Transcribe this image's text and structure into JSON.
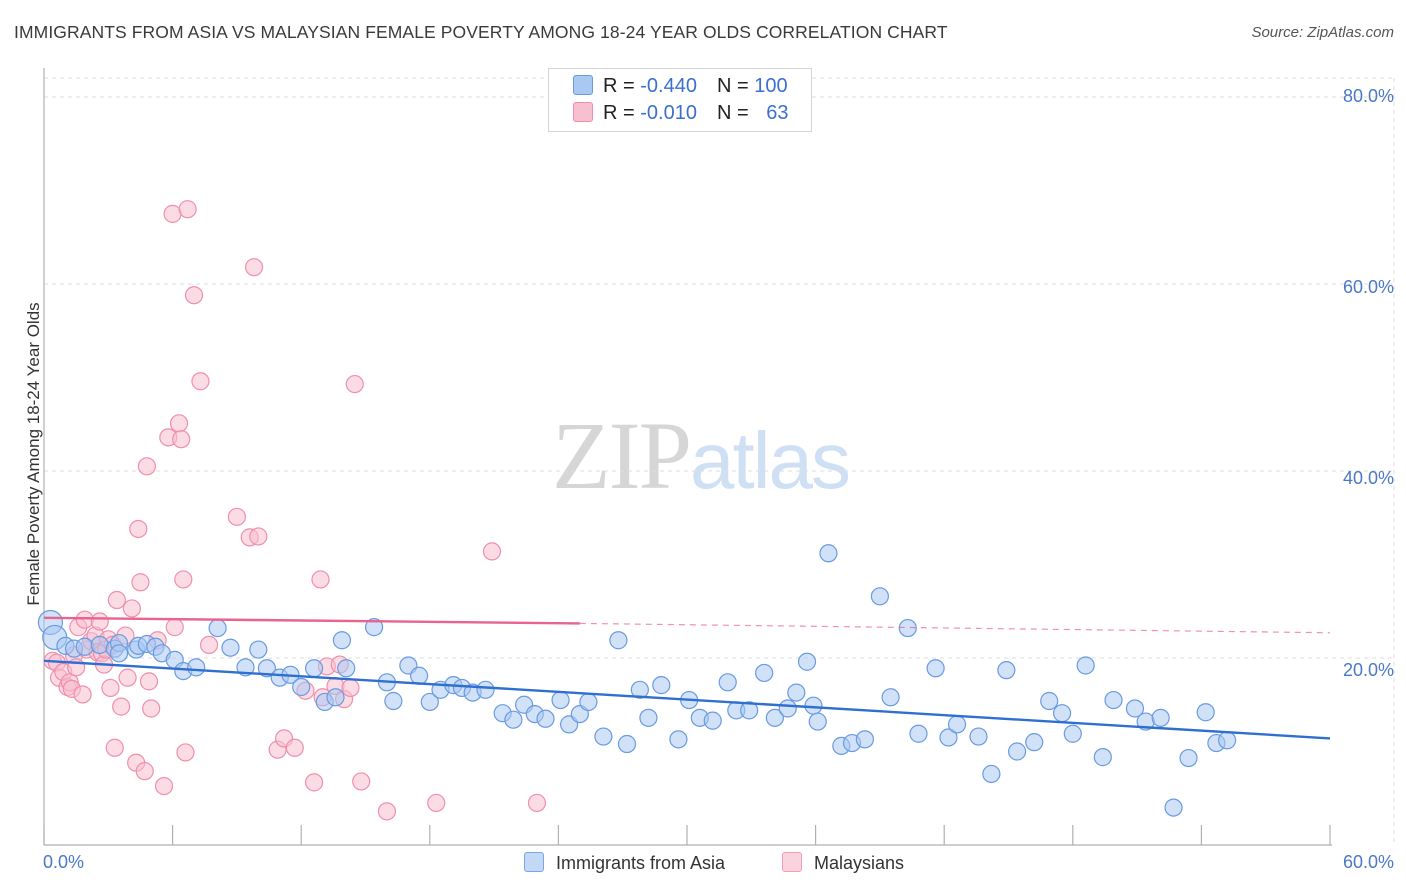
{
  "title": "IMMIGRANTS FROM ASIA VS MALAYSIAN FEMALE POVERTY AMONG 18-24 YEAR OLDS CORRELATION CHART",
  "source": "Source: ZipAtlas.com",
  "watermark": {
    "zip": "ZIP",
    "atlas": "atlas"
  },
  "legend": {
    "rows": [
      {
        "r_label": "R = ",
        "r_value": "-0.440",
        "n_label": "N = ",
        "n_value": "100"
      },
      {
        "r_label": "R = ",
        "r_value": "-0.010",
        "n_label": "N = ",
        "n_value": "63"
      }
    ]
  },
  "bottom_legend": [
    "Immigrants from Asia",
    "Malaysians"
  ],
  "chart_data": {
    "type": "scatter",
    "ylabel": "Female Poverty Among 18-24 Year Olds",
    "xlabel": "",
    "xlim": [
      0,
      60
    ],
    "ylim": [
      0,
      80
    ],
    "x_tick_labels": [
      "0.0%",
      "60.0%"
    ],
    "y_tick_labels": [
      "20.0%",
      "40.0%",
      "60.0%",
      "80.0%"
    ],
    "y_ticks": [
      20,
      40,
      60,
      80
    ],
    "grid": "horizontal dashed",
    "legend_position": "top-center",
    "colors": {
      "asia_fill": "#a9c8f2",
      "asia_stroke": "#6a9be0",
      "asia_line": "#2f6fd0",
      "malay_fill": "#f7c0d0",
      "malay_stroke": "#ef8fac",
      "malay_line": "#e8638e"
    },
    "series": [
      {
        "name": "Immigrants from Asia",
        "r": -0.44,
        "n": 100,
        "trend": {
          "x": [
            0,
            60
          ],
          "y": [
            19.7,
            11.4
          ]
        },
        "points": [
          [
            0.3,
            23.8
          ],
          [
            0.5,
            22.2
          ],
          [
            1.0,
            21.3
          ],
          [
            1.4,
            21.0
          ],
          [
            1.9,
            21.2
          ],
          [
            2.6,
            21.4
          ],
          [
            3.3,
            21.0
          ],
          [
            3.5,
            21.6
          ],
          [
            3.5,
            20.5
          ],
          [
            4.3,
            20.9
          ],
          [
            4.4,
            21.3
          ],
          [
            4.8,
            21.5
          ],
          [
            5.2,
            21.2
          ],
          [
            5.5,
            20.5
          ],
          [
            6.1,
            19.8
          ],
          [
            6.5,
            18.6
          ],
          [
            7.1,
            19.0
          ],
          [
            8.1,
            23.2
          ],
          [
            8.7,
            21.1
          ],
          [
            9.4,
            19.0
          ],
          [
            10.0,
            20.9
          ],
          [
            10.4,
            18.9
          ],
          [
            11.0,
            17.9
          ],
          [
            11.5,
            18.2
          ],
          [
            12.0,
            16.9
          ],
          [
            12.6,
            18.9
          ],
          [
            13.1,
            15.3
          ],
          [
            13.6,
            15.8
          ],
          [
            13.9,
            21.9
          ],
          [
            14.1,
            18.9
          ],
          [
            15.4,
            23.3
          ],
          [
            16.0,
            17.4
          ],
          [
            16.3,
            15.4
          ],
          [
            17.0,
            19.2
          ],
          [
            17.5,
            18.1
          ],
          [
            18.0,
            15.3
          ],
          [
            18.5,
            16.6
          ],
          [
            19.1,
            17.1
          ],
          [
            19.5,
            16.8
          ],
          [
            20.0,
            16.3
          ],
          [
            20.6,
            16.6
          ],
          [
            21.4,
            14.1
          ],
          [
            21.9,
            13.4
          ],
          [
            22.4,
            15.0
          ],
          [
            22.9,
            14.0
          ],
          [
            23.4,
            13.5
          ],
          [
            24.1,
            15.5
          ],
          [
            24.5,
            12.9
          ],
          [
            25.0,
            14.0
          ],
          [
            25.4,
            15.3
          ],
          [
            26.1,
            11.6
          ],
          [
            26.8,
            21.9
          ],
          [
            27.2,
            10.8
          ],
          [
            27.8,
            16.6
          ],
          [
            28.2,
            13.6
          ],
          [
            28.8,
            17.1
          ],
          [
            29.6,
            11.3
          ],
          [
            30.1,
            15.5
          ],
          [
            30.6,
            13.6
          ],
          [
            31.2,
            13.3
          ],
          [
            31.9,
            17.4
          ],
          [
            32.3,
            14.4
          ],
          [
            32.9,
            14.4
          ],
          [
            33.6,
            18.4
          ],
          [
            34.1,
            13.6
          ],
          [
            34.7,
            14.6
          ],
          [
            35.1,
            16.3
          ],
          [
            35.6,
            19.6
          ],
          [
            35.9,
            14.9
          ],
          [
            36.1,
            13.2
          ],
          [
            36.6,
            31.2
          ],
          [
            37.2,
            10.6
          ],
          [
            37.7,
            10.9
          ],
          [
            38.3,
            11.3
          ],
          [
            39.0,
            26.6
          ],
          [
            39.5,
            15.8
          ],
          [
            40.3,
            23.2
          ],
          [
            40.8,
            11.9
          ],
          [
            41.6,
            18.9
          ],
          [
            42.2,
            11.5
          ],
          [
            42.6,
            12.9
          ],
          [
            43.6,
            11.6
          ],
          [
            44.2,
            7.6
          ],
          [
            44.9,
            18.7
          ],
          [
            45.4,
            10.0
          ],
          [
            46.2,
            11.0
          ],
          [
            46.9,
            15.4
          ],
          [
            47.5,
            14.1
          ],
          [
            48.0,
            11.9
          ],
          [
            48.6,
            19.2
          ],
          [
            49.4,
            9.4
          ],
          [
            49.9,
            15.5
          ],
          [
            50.9,
            14.6
          ],
          [
            51.4,
            13.2
          ],
          [
            52.1,
            13.6
          ],
          [
            52.7,
            4.0
          ],
          [
            53.4,
            9.3
          ],
          [
            54.2,
            14.2
          ],
          [
            54.7,
            10.9
          ],
          [
            55.2,
            11.2
          ]
        ]
      },
      {
        "name": "Malaysians",
        "r": -0.01,
        "n": 63,
        "trend": {
          "x": [
            0,
            25
          ],
          "y": [
            24.3,
            23.7
          ]
        },
        "trend_dashed": {
          "x": [
            25,
            60
          ],
          "y": [
            23.7,
            22.7
          ]
        },
        "points": [
          [
            0.4,
            19.7
          ],
          [
            0.6,
            19.5
          ],
          [
            0.7,
            17.9
          ],
          [
            0.9,
            18.5
          ],
          [
            1.1,
            16.9
          ],
          [
            1.2,
            17.4
          ],
          [
            1.3,
            16.7
          ],
          [
            1.4,
            20.3
          ],
          [
            1.5,
            19.0
          ],
          [
            1.6,
            23.3
          ],
          [
            1.8,
            16.1
          ],
          [
            1.9,
            24.1
          ],
          [
            2.0,
            20.9
          ],
          [
            2.2,
            21.8
          ],
          [
            2.4,
            22.4
          ],
          [
            2.5,
            20.6
          ],
          [
            2.6,
            23.9
          ],
          [
            2.7,
            20.5
          ],
          [
            2.8,
            19.3
          ],
          [
            2.9,
            20.9
          ],
          [
            3.0,
            22.0
          ],
          [
            3.1,
            16.8
          ],
          [
            3.2,
            21.4
          ],
          [
            3.3,
            10.4
          ],
          [
            3.4,
            26.2
          ],
          [
            3.6,
            14.8
          ],
          [
            3.8,
            22.4
          ],
          [
            3.9,
            17.9
          ],
          [
            4.1,
            25.3
          ],
          [
            4.3,
            8.8
          ],
          [
            4.4,
            33.8
          ],
          [
            4.5,
            28.1
          ],
          [
            4.7,
            7.9
          ],
          [
            4.8,
            40.5
          ],
          [
            4.9,
            17.5
          ],
          [
            5.0,
            14.6
          ],
          [
            5.3,
            21.9
          ],
          [
            5.6,
            6.3
          ],
          [
            5.8,
            43.6
          ],
          [
            6.0,
            67.5
          ],
          [
            6.1,
            23.3
          ],
          [
            6.3,
            45.1
          ],
          [
            6.4,
            43.4
          ],
          [
            6.5,
            28.4
          ],
          [
            6.6,
            9.9
          ],
          [
            6.7,
            68.0
          ],
          [
            7.0,
            58.8
          ],
          [
            7.3,
            49.6
          ],
          [
            7.7,
            21.4
          ],
          [
            9.0,
            35.1
          ],
          [
            9.6,
            32.9
          ],
          [
            9.8,
            61.8
          ],
          [
            10.9,
            10.2
          ],
          [
            11.2,
            11.4
          ],
          [
            11.7,
            10.4
          ],
          [
            12.6,
            6.7
          ],
          [
            12.9,
            28.4
          ],
          [
            13.0,
            15.8
          ],
          [
            13.2,
            19.1
          ],
          [
            13.8,
            19.3
          ],
          [
            14.5,
            49.3
          ],
          [
            14.8,
            6.8
          ],
          [
            16.0,
            3.6
          ]
        ],
        "extra_points": [
          [
            10.0,
            33.0
          ],
          [
            12.2,
            16.5
          ],
          [
            13.6,
            17.0
          ],
          [
            14.0,
            15.6
          ],
          [
            20.9,
            31.4
          ],
          [
            23.0,
            4.5
          ],
          [
            14.3,
            16.8
          ],
          [
            18.3,
            4.5
          ]
        ]
      }
    ]
  }
}
